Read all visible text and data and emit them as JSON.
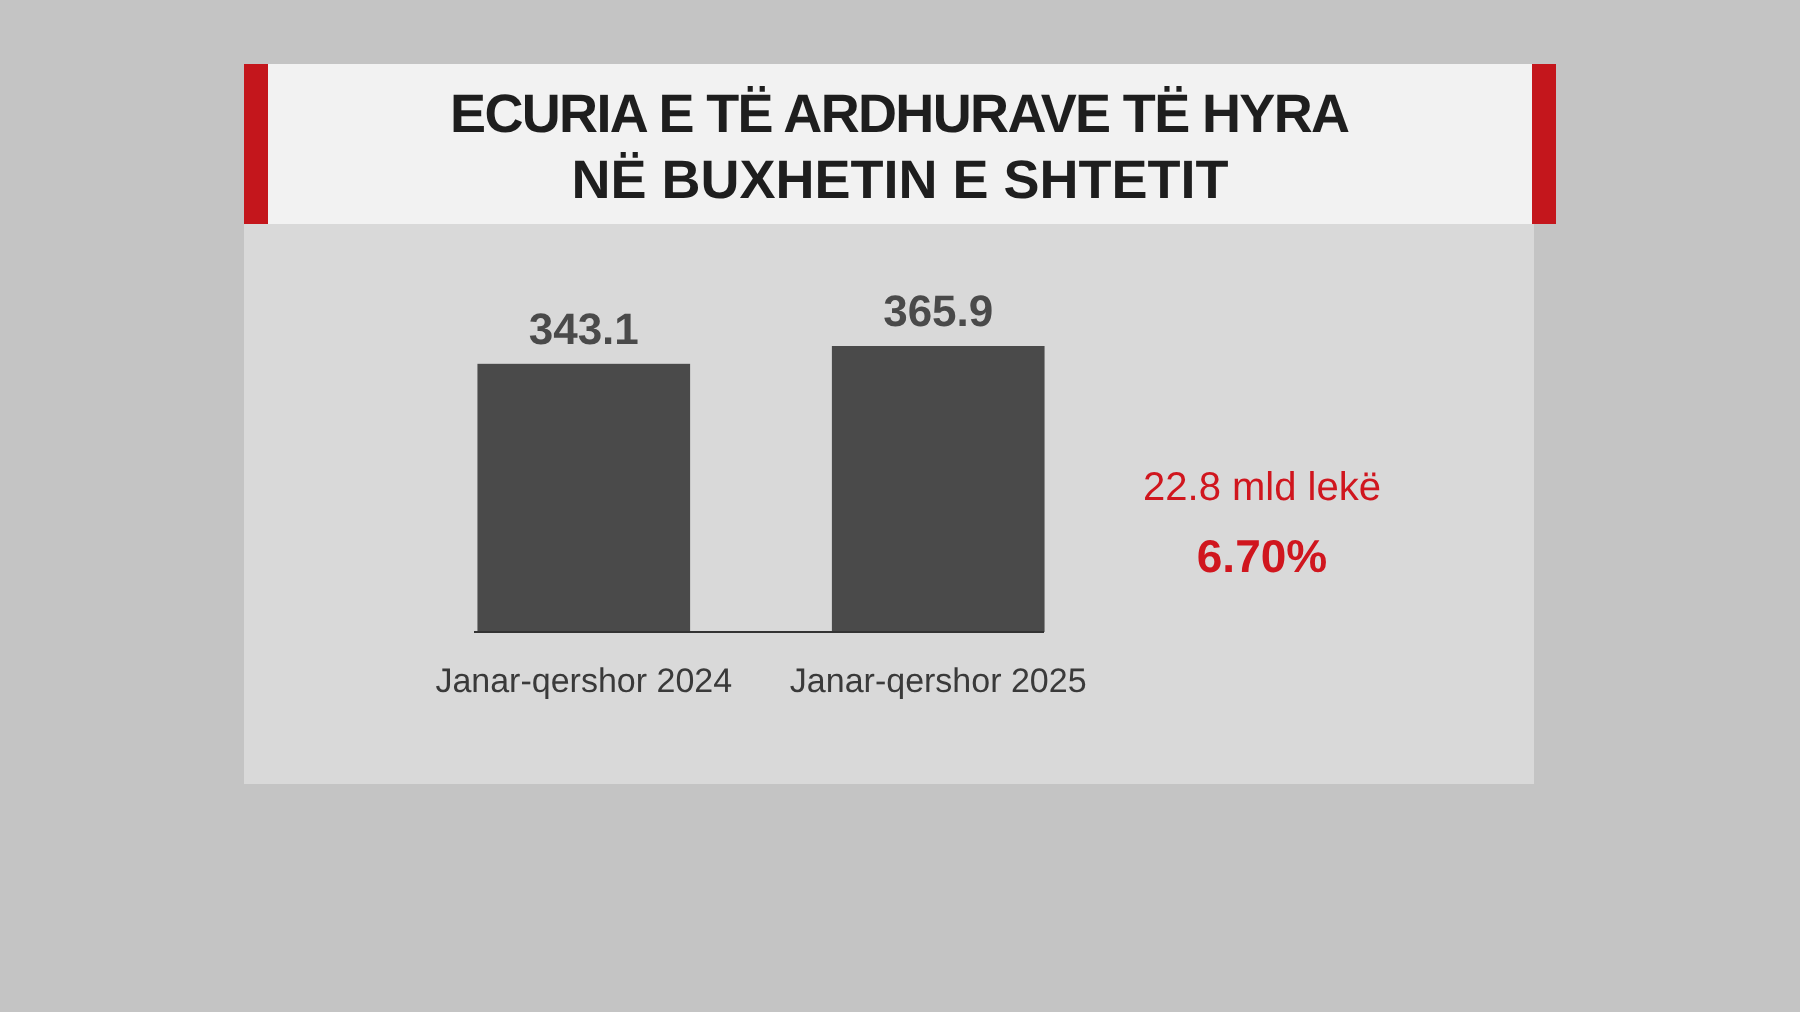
{
  "chart_data": {
    "type": "bar",
    "title": "ECURIA E TË ARDHURAVE TË HYRA\nNË BUXHETIN E SHTETIT",
    "categories": [
      "Janar-qershor 2024",
      "Janar-qershor 2025"
    ],
    "values": [
      343.1,
      365.9
    ],
    "color": "#4a4a4a",
    "data_labels": true,
    "annotations": [
      "22.8 mld lekë",
      "6.70%"
    ]
  }
}
